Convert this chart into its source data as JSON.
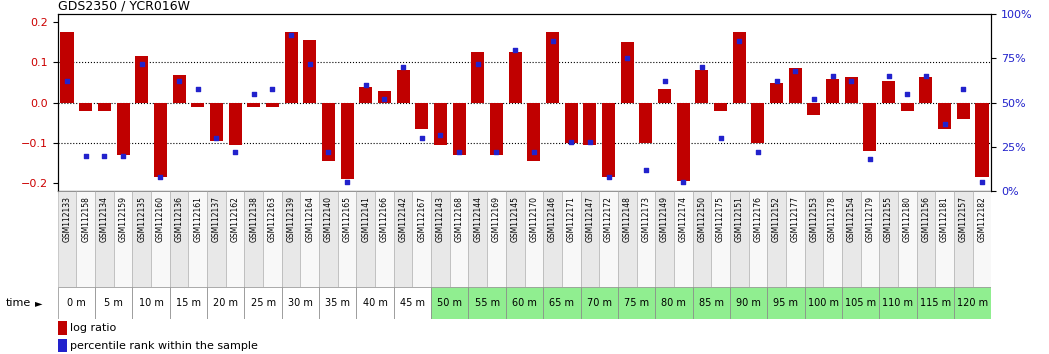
{
  "title": "GDS2350 / YCR016W",
  "gsm_labels": [
    "GSM112133",
    "GSM112158",
    "GSM112134",
    "GSM112159",
    "GSM112135",
    "GSM112160",
    "GSM112136",
    "GSM112161",
    "GSM112137",
    "GSM112162",
    "GSM112138",
    "GSM112163",
    "GSM112139",
    "GSM112164",
    "GSM112140",
    "GSM112165",
    "GSM112141",
    "GSM112166",
    "GSM112142",
    "GSM112167",
    "GSM112143",
    "GSM112168",
    "GSM112144",
    "GSM112169",
    "GSM112145",
    "GSM112170",
    "GSM112146",
    "GSM112171",
    "GSM112147",
    "GSM112172",
    "GSM112148",
    "GSM112173",
    "GSM112149",
    "GSM112174",
    "GSM112150",
    "GSM112175",
    "GSM112151",
    "GSM112176",
    "GSM112152",
    "GSM112177",
    "GSM112153",
    "GSM112178",
    "GSM112154",
    "GSM112179",
    "GSM112155",
    "GSM112180",
    "GSM112156",
    "GSM112181",
    "GSM112157",
    "GSM112182"
  ],
  "time_labels": [
    "0 m",
    "5 m",
    "10 m",
    "15 m",
    "20 m",
    "25 m",
    "30 m",
    "35 m",
    "40 m",
    "45 m",
    "50 m",
    "55 m",
    "60 m",
    "65 m",
    "70 m",
    "75 m",
    "80 m",
    "85 m",
    "90 m",
    "95 m",
    "100 m",
    "105 m",
    "110 m",
    "115 m",
    "120 m"
  ],
  "log_ratios": [
    0.175,
    -0.02,
    -0.02,
    -0.13,
    0.115,
    -0.185,
    0.07,
    -0.01,
    -0.095,
    -0.105,
    -0.01,
    -0.01,
    0.175,
    0.155,
    -0.145,
    -0.19,
    0.04,
    0.03,
    0.08,
    -0.065,
    -0.105,
    -0.13,
    0.125,
    -0.13,
    0.125,
    -0.145,
    0.175,
    -0.1,
    -0.105,
    -0.185,
    0.15,
    -0.1,
    0.035,
    -0.195,
    0.08,
    -0.02,
    0.175,
    -0.1,
    0.05,
    0.085,
    -0.03,
    0.06,
    0.065,
    -0.12,
    0.055,
    -0.02,
    0.065,
    -0.065,
    -0.04,
    -0.185
  ],
  "percentile_ranks": [
    62,
    20,
    20,
    20,
    72,
    8,
    62,
    58,
    30,
    22,
    55,
    58,
    88,
    72,
    22,
    5,
    60,
    52,
    70,
    30,
    32,
    22,
    72,
    22,
    80,
    22,
    85,
    28,
    28,
    8,
    75,
    12,
    62,
    5,
    70,
    30,
    85,
    22,
    62,
    68,
    52,
    65,
    62,
    18,
    65,
    55,
    65,
    38,
    58,
    5
  ],
  "bar_color": "#c00000",
  "dot_color": "#2222cc",
  "ylim_left": [
    -0.22,
    0.22
  ],
  "ylim_right": [
    0,
    100
  ],
  "yticks_left": [
    -0.2,
    -0.1,
    0.0,
    0.1,
    0.2
  ],
  "yticks_right": [
    0,
    25,
    50,
    75,
    100
  ],
  "ytick_labels_right": [
    "0%",
    "25%",
    "50%",
    "75%",
    "100%"
  ],
  "hlines": [
    0.1,
    0.0,
    -0.1
  ],
  "background_color": "#ffffff",
  "gsm_box_color_odd": "#e8e8e8",
  "gsm_box_color_even": "#f8f8f8",
  "time_bar_colors": [
    "#ffffff",
    "#ffffff",
    "#ffffff",
    "#ffffff",
    "#ffffff",
    "#ffffff",
    "#ffffff",
    "#ffffff",
    "#ffffff",
    "#ffffff",
    "#90ee90",
    "#90ee90",
    "#90ee90",
    "#90ee90",
    "#90ee90",
    "#90ee90",
    "#90ee90",
    "#90ee90",
    "#90ee90",
    "#90ee90",
    "#90ee90",
    "#90ee90",
    "#90ee90",
    "#90ee90",
    "#90ee90"
  ],
  "left_ylabel_color": "#cc0000",
  "right_ylabel_color": "#2222cc",
  "title_fontsize": 9,
  "tick_fontsize": 8,
  "gsm_fontsize": 5.5,
  "time_fontsize": 7,
  "legend_fontsize": 8
}
